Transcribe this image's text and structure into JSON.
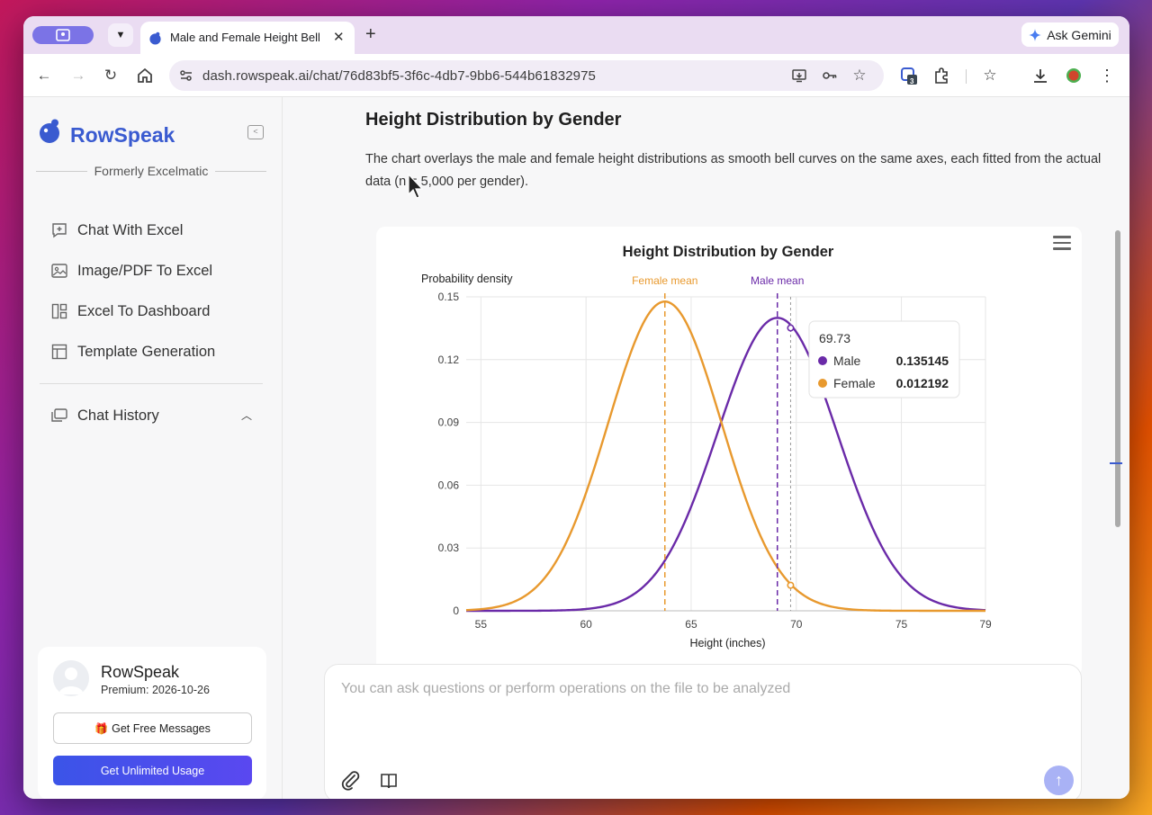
{
  "browser": {
    "tab_title": "Male and Female Height Bell C",
    "url": "dash.rowspeak.ai/chat/76d83bf5-3f6c-4db7-9bb6-544b61832975",
    "ask_gemini": "Ask Gemini",
    "extension_badge": "3"
  },
  "sidebar": {
    "brand": "RowSpeak",
    "formerly": "Formerly Excelmatic",
    "items": [
      {
        "label": "Chat With Excel",
        "icon": "chat-plus-icon"
      },
      {
        "label": "Image/PDF To Excel",
        "icon": "image-icon"
      },
      {
        "label": "Excel To Dashboard",
        "icon": "dashboard-icon"
      },
      {
        "label": "Template Generation",
        "icon": "template-icon"
      }
    ],
    "chat_history": "Chat History",
    "user": {
      "name": "RowSpeak",
      "plan": "Premium: 2026-10-26",
      "free_button": "Get Free Messages",
      "unlimited_button": "Get Unlimited Usage"
    }
  },
  "main": {
    "title": "Height Distribution by Gender",
    "description": "The chart overlays the male and female height distributions as smooth bell curves on the same axes, each fitted from the actual data (n = 5,000 per gender).",
    "composer_placeholder": "You can ask questions or perform operations on the file to be analyzed"
  },
  "colors": {
    "male": "#6a2aa8",
    "female": "#e8992e",
    "accent": "#3a5bd0"
  },
  "chart_data": {
    "type": "line",
    "title": "Height Distribution by Gender",
    "ylabel": "Probability density",
    "xlabel": "Height (inches)",
    "xlim": [
      54.3,
      79
    ],
    "ylim": [
      0,
      0.15
    ],
    "xticks": [
      "55",
      "60",
      "65",
      "70",
      "75",
      "79"
    ],
    "yticks": [
      "0",
      "0.03",
      "0.06",
      "0.09",
      "0.12",
      "0.15"
    ],
    "series": [
      {
        "name": "Male",
        "mean": 69.1,
        "sd": 2.85,
        "color": "#6a2aa8"
      },
      {
        "name": "Female",
        "mean": 63.75,
        "sd": 2.7,
        "color": "#e8992e"
      }
    ],
    "annotations": [
      {
        "label": "Female mean",
        "x": 63.75
      },
      {
        "label": "Male mean",
        "x": 69.1
      }
    ],
    "tooltip": {
      "x": "69.73",
      "rows": [
        {
          "name": "Male",
          "value": "0.135145"
        },
        {
          "name": "Female",
          "value": "0.012192"
        }
      ]
    },
    "grid": true
  }
}
